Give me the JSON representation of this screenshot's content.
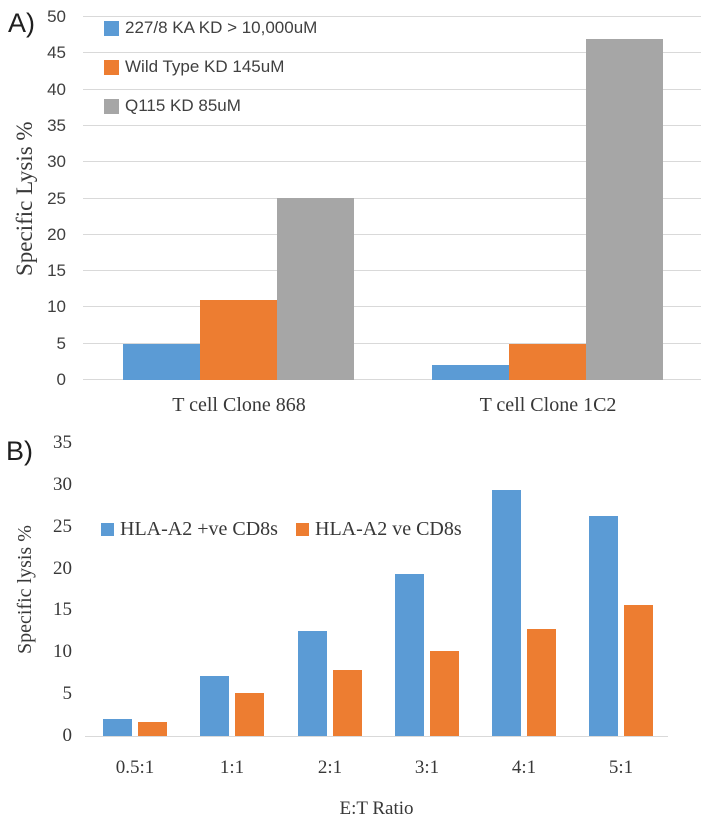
{
  "figure": {
    "panel_a_label": "A)",
    "panel_b_label": "B)"
  },
  "colors": {
    "blue": "#5B9BD5",
    "orange": "#ED7D31",
    "gray": "#A6A6A6",
    "gridline": "#D9D9D9",
    "text_dark": "#383838"
  },
  "chart_data": [
    {
      "type": "bar",
      "panel": "A)",
      "categories": [
        "T cell Clone 868",
        "T cell Clone 1C2"
      ],
      "series": [
        {
          "name": "227/8 KA KD > 10,000uM",
          "color": "#5B9BD5",
          "values": [
            5,
            2
          ]
        },
        {
          "name": "Wild Type KD 145uM",
          "color": "#ED7D31",
          "values": [
            11,
            5
          ]
        },
        {
          "name": "Q115 KD 85uM",
          "color": "#A6A6A6",
          "values": [
            25,
            47
          ]
        }
      ],
      "ylabel": "Specific Lysis %",
      "xlabel": "",
      "ylim": [
        0,
        50
      ],
      "ytick_step": 5,
      "grid": true,
      "legend_position": "top-left-vertical"
    },
    {
      "type": "bar",
      "panel": "B)",
      "categories": [
        "0.5:1",
        "1:1",
        "2:1",
        "3:1",
        "4:1",
        "5:1"
      ],
      "series": [
        {
          "name": "HLA-A2 +ve CD8s",
          "color": "#5B9BD5",
          "values": [
            2,
            7.2,
            12.6,
            19.3,
            29.4,
            26.3
          ]
        },
        {
          "name": "HLA-A2 ve CD8s",
          "color": "#ED7D31",
          "values": [
            1.7,
            5.1,
            7.9,
            10.2,
            12.8,
            15.7
          ]
        }
      ],
      "ylabel": "Specific lysis %",
      "xlabel": "E:T Ratio",
      "ylim": [
        0,
        35
      ],
      "ytick_step": 5,
      "grid": false,
      "legend_position": "inside-horizontal"
    }
  ]
}
